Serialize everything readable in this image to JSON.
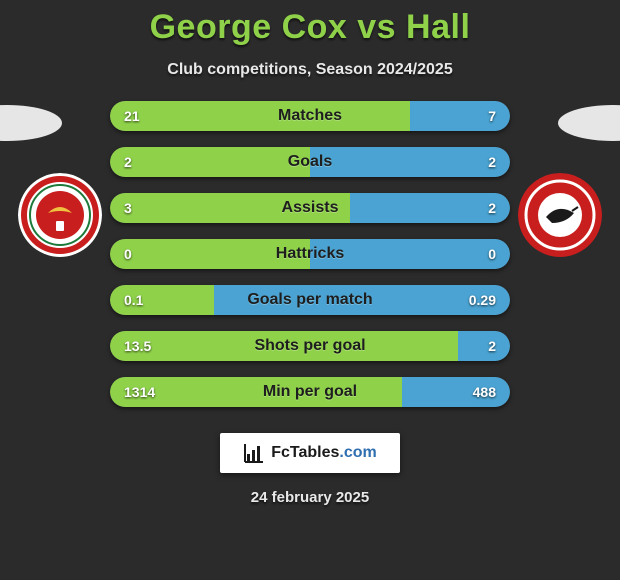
{
  "header": {
    "player1": "George Cox",
    "vs": "vs",
    "player2": "Hall",
    "subtitle": "Club competitions, Season 2024/2025"
  },
  "colors": {
    "title": "#8fd24a",
    "bar_left": "#8fd24a",
    "bar_right": "#4aa3d2",
    "bar_bg": "#555555",
    "page_bg": "#2b2b2b"
  },
  "crests": {
    "left": {
      "bg": "#ffffff",
      "ring": "#c81e1e",
      "accent": "#c81e1e"
    },
    "right": {
      "bg": "#c81e1e",
      "ring": "#ffffff",
      "accent": "#1a1a1a"
    }
  },
  "bars": [
    {
      "label": "Matches",
      "left": "21",
      "right": "7",
      "left_pct": 75,
      "right_pct": 25
    },
    {
      "label": "Goals",
      "left": "2",
      "right": "2",
      "left_pct": 50,
      "right_pct": 50
    },
    {
      "label": "Assists",
      "left": "3",
      "right": "2",
      "left_pct": 60,
      "right_pct": 40
    },
    {
      "label": "Hattricks",
      "left": "0",
      "right": "0",
      "left_pct": 50,
      "right_pct": 50
    },
    {
      "label": "Goals per match",
      "left": "0.1",
      "right": "0.29",
      "left_pct": 26,
      "right_pct": 74
    },
    {
      "label": "Shots per goal",
      "left": "13.5",
      "right": "2",
      "left_pct": 87,
      "right_pct": 13
    },
    {
      "label": "Min per goal",
      "left": "1314",
      "right": "488",
      "left_pct": 73,
      "right_pct": 27
    }
  ],
  "footer": {
    "logo_text_main": "FcTables",
    "logo_text_dom": ".com",
    "date": "24 february 2025"
  }
}
